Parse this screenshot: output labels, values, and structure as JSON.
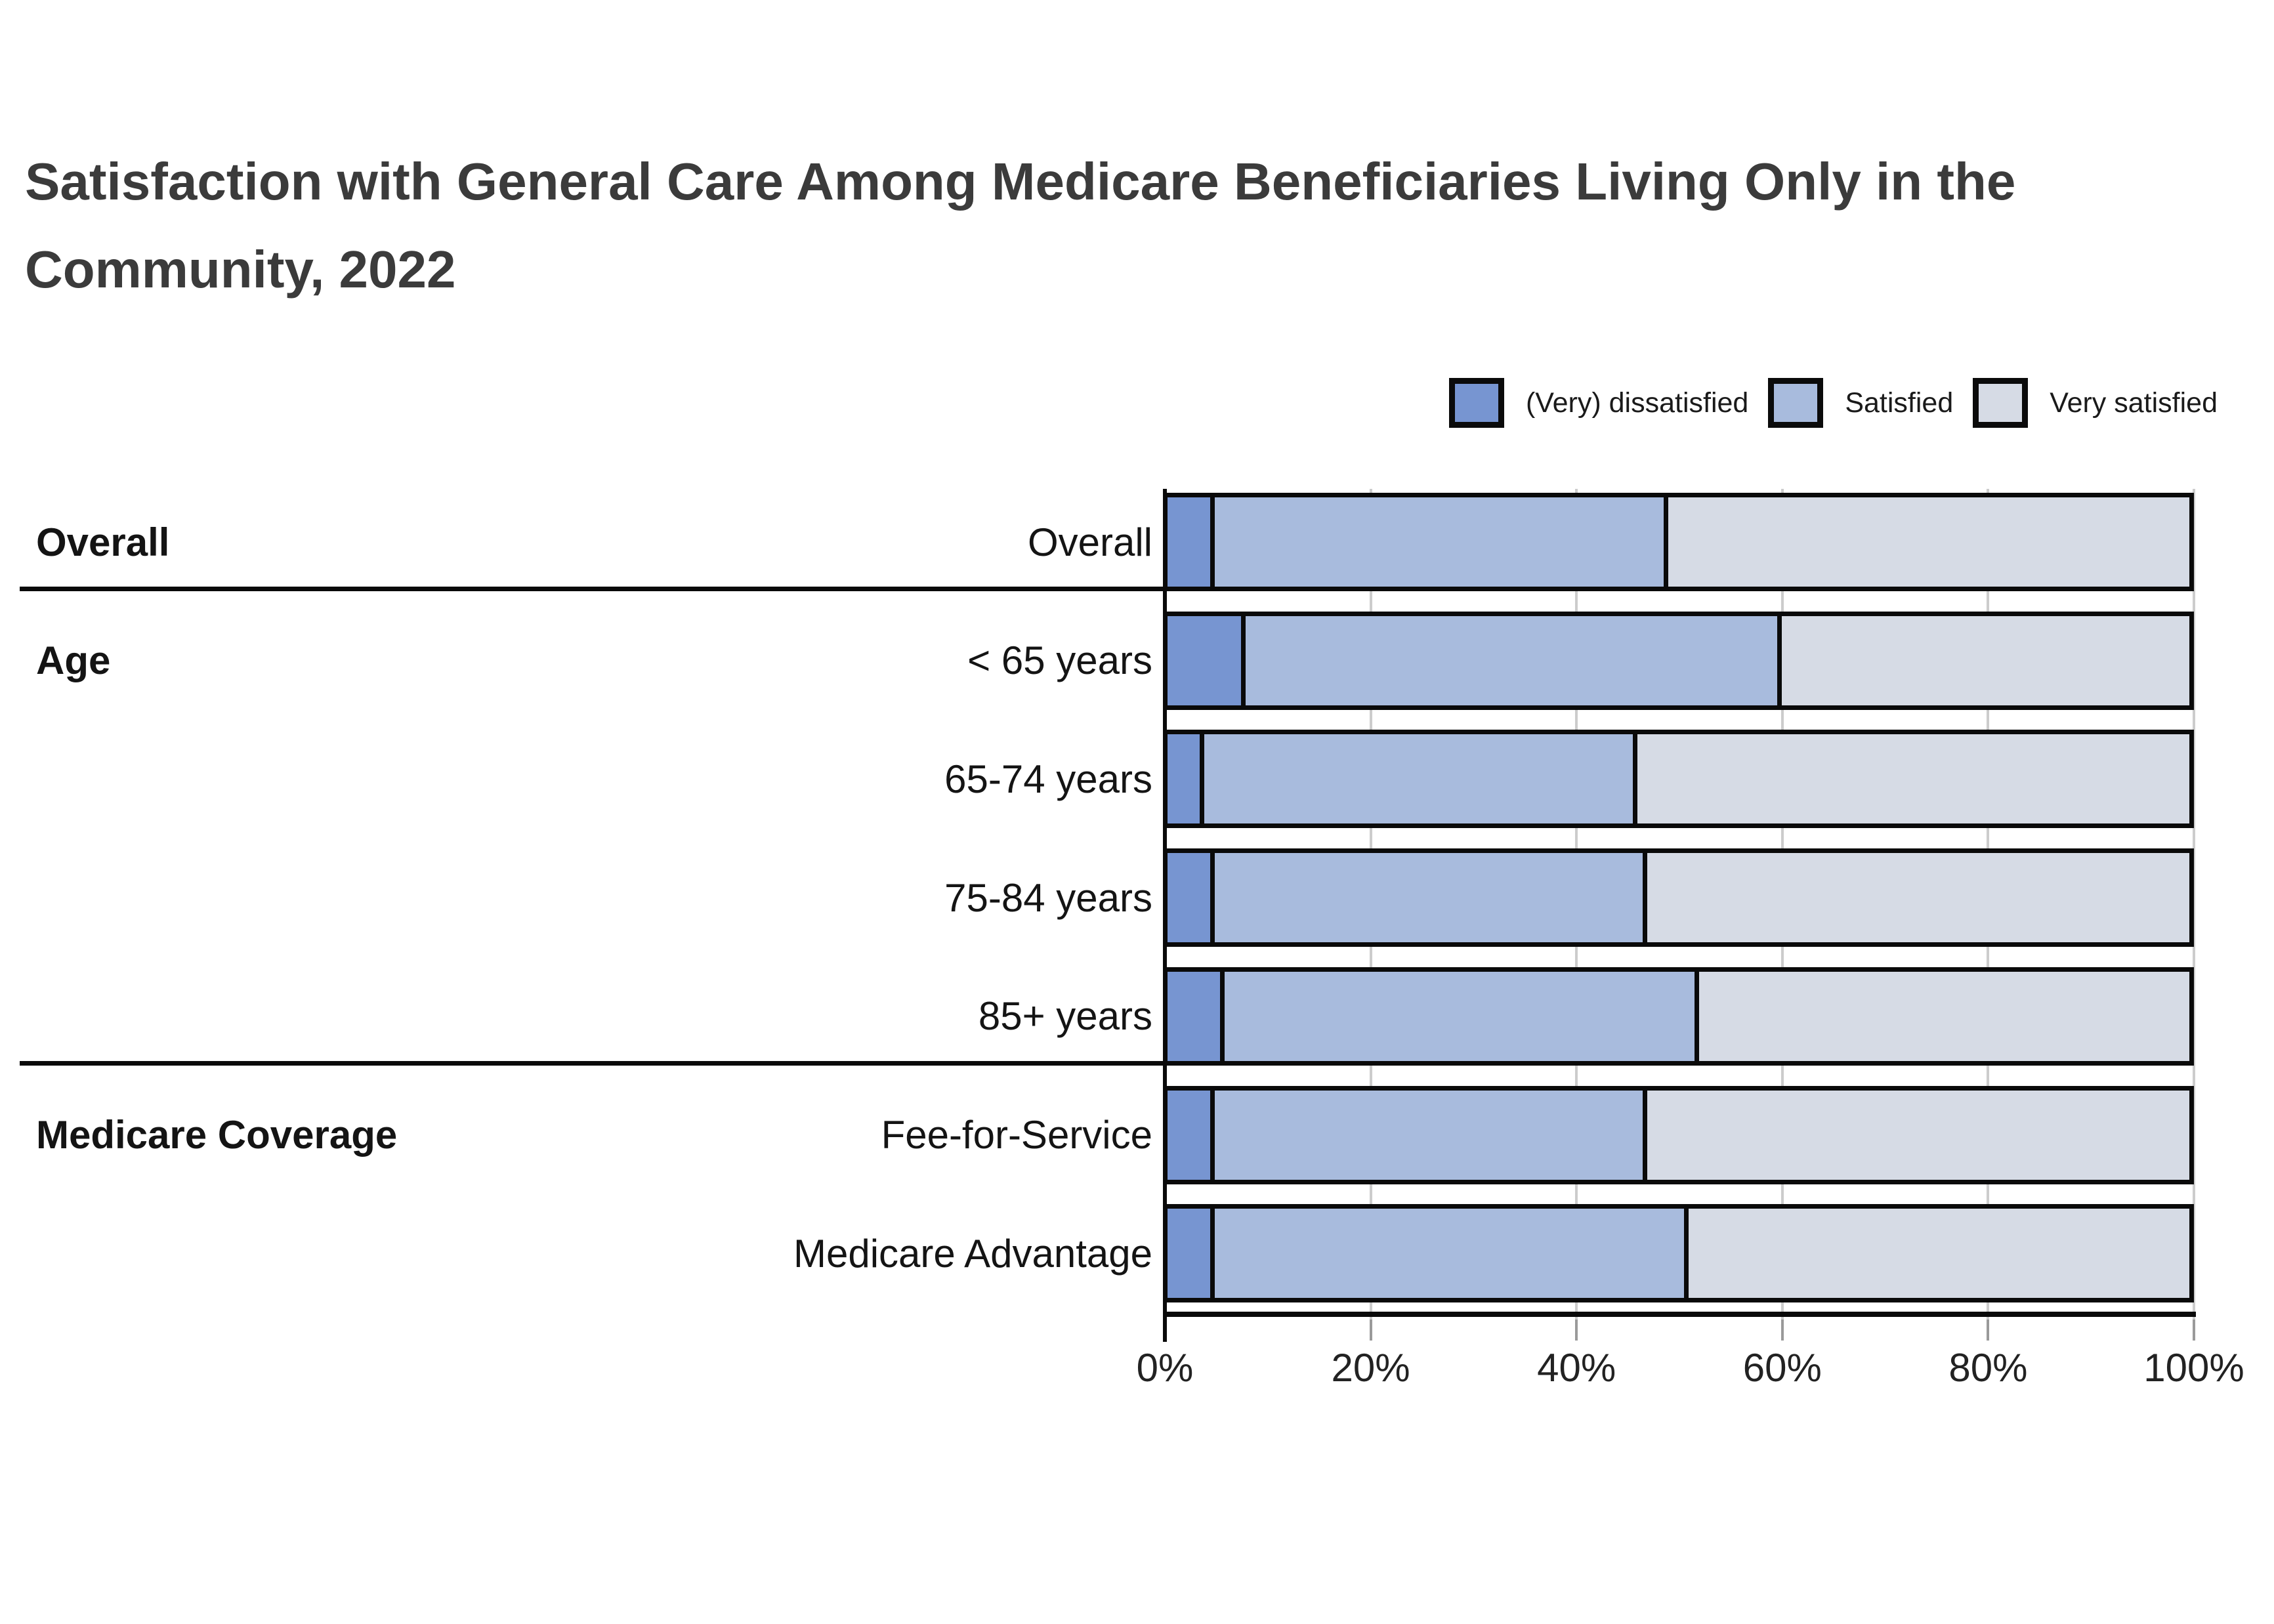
{
  "title": {
    "line1": "Satisfaction with General Care Among Medicare Beneficiaries Living Only in the",
    "line2": "Community, 2022"
  },
  "colors": {
    "dissatisfied": "#7795d1",
    "satisfied": "#a8bbdd",
    "very_satisfied": "#d6dbe5",
    "bar_border": "#0a0a0a",
    "gridline": "#cccccc",
    "axis": "#0a0a0a",
    "title_text": "#3b3b3b",
    "label_text": "#141414"
  },
  "chart_data": {
    "type": "bar",
    "subtype": "horizontal_stacked_percent",
    "title": "Satisfaction with General Care Among Medicare Beneficiaries Living Only in the Community, 2022",
    "categories": [
      "Overall",
      "< 65 years",
      "65-74 years",
      "75-84 years",
      "85+ years",
      "Fee-for-Service",
      "Medicare Advantage"
    ],
    "groups": [
      {
        "label": "Overall",
        "start_row": 0,
        "end_row": 0
      },
      {
        "label": "Age",
        "start_row": 1,
        "end_row": 4
      },
      {
        "label": "Medicare Coverage",
        "start_row": 5,
        "end_row": 6
      }
    ],
    "series": [
      {
        "name": "(Very) dissatisfied",
        "color": "#7795d1",
        "values": [
          5,
          8,
          4,
          5,
          6,
          5,
          5
        ]
      },
      {
        "name": "Satisfied",
        "color": "#a8bbdd",
        "values": [
          44,
          52,
          42,
          42,
          46,
          42,
          46
        ]
      },
      {
        "name": "Very satisfied",
        "color": "#d6dbe5",
        "values": [
          51,
          40,
          54,
          53,
          48,
          53,
          49
        ]
      }
    ],
    "xlim": [
      0,
      100
    ],
    "x_ticks": [
      0,
      20,
      40,
      60,
      80,
      100
    ],
    "x_tick_labels": [
      "0%",
      "20%",
      "40%",
      "60%",
      "80%",
      "100%"
    ],
    "grid": true,
    "legend_position": "top-right"
  }
}
